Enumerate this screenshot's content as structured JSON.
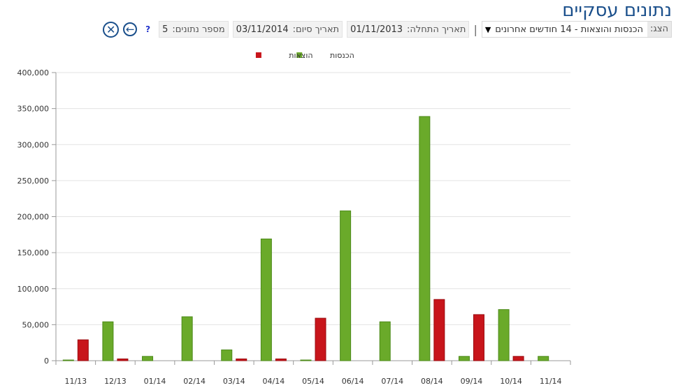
{
  "page": {
    "title": "נתונים עסקיים"
  },
  "toolbar": {
    "display_label": "הצג:",
    "display_value": "הכנסות והוצאות - 14 חודשים אחרונים",
    "dropdown_arrow": "▼",
    "separator": "|",
    "start_label": "תאריך התחלה:",
    "start_value": "01/11/2013",
    "end_label": "תאריך סיום:",
    "end_value": "03/11/2014",
    "count_label": "מספר נתונים:",
    "count_value": "5",
    "help_text": "?",
    "back_icon": "arrow-left-icon",
    "close_icon": "close-x-icon",
    "back_glyph": "←",
    "close_glyph": "✕"
  },
  "chart_data": {
    "type": "bar",
    "categories": [
      "11/13",
      "12/13",
      "01/14",
      "02/14",
      "03/14",
      "04/14",
      "05/14",
      "06/14",
      "07/14",
      "08/14",
      "09/14",
      "10/14",
      "11/14"
    ],
    "series": [
      {
        "name": "הכנסות",
        "color": "#6aaa2a",
        "values": [
          500,
          54000,
          6000,
          61000,
          15000,
          169000,
          500,
          208000,
          54000,
          339000,
          6000,
          71000,
          6000
        ]
      },
      {
        "name": "הוצאות",
        "color": "#c8151b",
        "values": [
          29000,
          2500,
          0,
          0,
          2500,
          2500,
          59000,
          0,
          0,
          85000,
          64000,
          6000,
          0
        ]
      }
    ],
    "yticks": [
      "0",
      "50,000",
      "100,000",
      "150,000",
      "200,000",
      "250,000",
      "300,000",
      "350,000",
      "400,000"
    ],
    "ylim": [
      0,
      400000
    ],
    "grid": true,
    "legend_position": "top-center"
  }
}
